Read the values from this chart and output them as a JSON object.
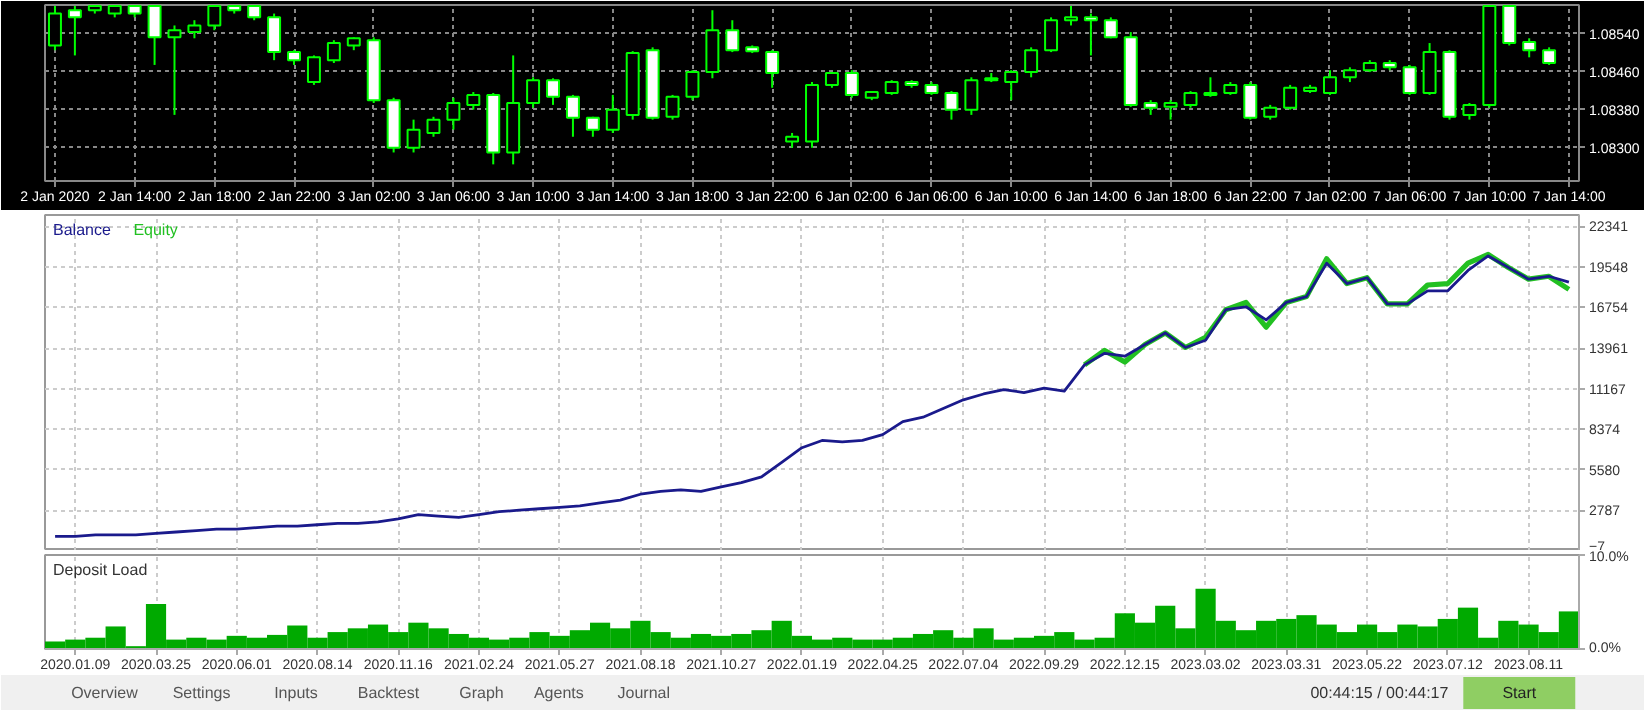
{
  "chart_data": [
    {
      "type": "candlestick",
      "grid": true,
      "categories": [
        "2 Jan 2020",
        null,
        null,
        null,
        "2 Jan 14:00",
        null,
        null,
        null,
        "2 Jan 18:00",
        null,
        null,
        null,
        "2 Jan 22:00",
        null,
        null,
        null,
        "3 Jan 02:00",
        null,
        null,
        null,
        "3 Jan 06:00",
        null,
        null,
        null,
        "3 Jan 10:00",
        null,
        null,
        null,
        "3 Jan 14:00",
        null,
        null,
        null,
        "3 Jan 18:00",
        null,
        null,
        null,
        "3 Jan 22:00",
        null,
        null,
        null,
        "6 Jan 02:00",
        null,
        null,
        null,
        "6 Jan 06:00",
        null,
        null,
        null,
        "6 Jan 10:00",
        null,
        null,
        null,
        "6 Jan 14:00",
        null,
        null,
        null,
        "6 Jan 18:00",
        null,
        null,
        null,
        "6 Jan 22:00",
        null,
        null,
        null,
        "7 Jan 02:00",
        null,
        null,
        null,
        "7 Jan 06:00",
        null,
        null,
        null,
        "7 Jan 10:00",
        null,
        null,
        null,
        "7 Jan 14:00"
      ],
      "ohlc": [
        [
          1.08515,
          1.08598,
          1.08505,
          1.08582
        ],
        [
          1.08589,
          1.08598,
          1.08494,
          1.08574
        ],
        [
          1.08589,
          1.08598,
          1.08582,
          1.08598
        ],
        [
          1.08582,
          1.08598,
          1.08574,
          1.08598
        ],
        [
          1.08598,
          1.08598,
          1.08574,
          1.08582
        ],
        [
          1.08598,
          1.08598,
          1.08474,
          1.08532
        ],
        [
          1.08532,
          1.08557,
          1.08369,
          1.08547
        ],
        [
          1.08543,
          1.08568,
          1.0853,
          1.08557
        ],
        [
          1.08557,
          1.08598,
          1.08547,
          1.08598
        ],
        [
          1.08598,
          1.08598,
          1.08582,
          1.08589
        ],
        [
          1.08598,
          1.08598,
          1.08568,
          1.08574
        ],
        [
          1.08574,
          1.08582,
          1.08484,
          1.08501
        ],
        [
          1.08501,
          1.08505,
          1.08474,
          1.08484
        ],
        [
          1.08438,
          1.08494,
          1.08432,
          1.0849
        ],
        [
          1.08484,
          1.08526,
          1.08478,
          1.0852
        ],
        [
          1.08515,
          1.08532,
          1.08505,
          1.0853
        ],
        [
          1.08526,
          1.08532,
          1.08394,
          1.084
        ],
        [
          1.084,
          1.08405,
          1.0829,
          1.083
        ],
        [
          1.083,
          1.08359,
          1.0829,
          1.08338
        ],
        [
          1.08331,
          1.08365,
          1.08323,
          1.08359
        ],
        [
          1.08359,
          1.08405,
          1.08338,
          1.08394
        ],
        [
          1.0839,
          1.08417,
          1.0838,
          1.08411
        ],
        [
          1.08411,
          1.08415,
          1.08265,
          1.0829
        ],
        [
          1.0829,
          1.08494,
          1.08265,
          1.08394
        ],
        [
          1.08394,
          1.08448,
          1.08384,
          1.08442
        ],
        [
          1.08442,
          1.08446,
          1.0839,
          1.08407
        ],
        [
          1.08407,
          1.08411,
          1.08323,
          1.08363
        ],
        [
          1.08363,
          1.08365,
          1.08323,
          1.08338
        ],
        [
          1.08338,
          1.08411,
          1.08331,
          1.0838
        ],
        [
          1.08369,
          1.08503,
          1.08359,
          1.08499
        ],
        [
          1.08505,
          1.08511,
          1.08359,
          1.08363
        ],
        [
          1.08365,
          1.08411,
          1.08359,
          1.08407
        ],
        [
          1.08407,
          1.08463,
          1.084,
          1.08459
        ],
        [
          1.08459,
          1.08589,
          1.08446,
          1.08547
        ],
        [
          1.08547,
          1.08568,
          1.08501,
          1.08505
        ],
        [
          1.08511,
          1.08515,
          1.08499,
          1.08503
        ],
        [
          1.08501,
          1.08505,
          1.08426,
          1.08457
        ],
        [
          1.08313,
          1.08331,
          1.083,
          1.08323
        ],
        [
          1.08313,
          1.08438,
          1.083,
          1.08432
        ],
        [
          1.08432,
          1.08459,
          1.08426,
          1.08457
        ],
        [
          1.08457,
          1.08463,
          1.08405,
          1.08411
        ],
        [
          1.08405,
          1.08419,
          1.084,
          1.08417
        ],
        [
          1.08415,
          1.08442,
          1.08411,
          1.08438
        ],
        [
          1.08438,
          1.08442,
          1.08426,
          1.08432
        ],
        [
          1.08432,
          1.08438,
          1.08411,
          1.08415
        ],
        [
          1.08415,
          1.08419,
          1.08359,
          1.0838
        ],
        [
          1.0838,
          1.08448,
          1.08369,
          1.08442
        ],
        [
          1.08442,
          1.08457,
          1.08438,
          1.08446
        ],
        [
          1.08438,
          1.08463,
          1.084,
          1.08459
        ],
        [
          1.08459,
          1.08511,
          1.08448,
          1.08505
        ],
        [
          1.08505,
          1.08574,
          1.08501,
          1.08568
        ],
        [
          1.08568,
          1.08598,
          1.08557,
          1.08574
        ],
        [
          1.08574,
          1.08582,
          1.08494,
          1.08568
        ],
        [
          1.08568,
          1.08574,
          1.0853,
          1.08532
        ],
        [
          1.08532,
          1.08543,
          1.08386,
          1.0839
        ],
        [
          1.08394,
          1.084,
          1.08369,
          1.08384
        ],
        [
          1.08386,
          1.084,
          1.08359,
          1.08394
        ],
        [
          1.0839,
          1.08419,
          1.08384,
          1.08415
        ],
        [
          1.08411,
          1.08448,
          1.08407,
          1.08415
        ],
        [
          1.08415,
          1.08438,
          1.08411,
          1.08432
        ],
        [
          1.08432,
          1.08438,
          1.08359,
          1.08363
        ],
        [
          1.08365,
          1.0839,
          1.08359,
          1.08384
        ],
        [
          1.08384,
          1.08432,
          1.0838,
          1.08426
        ],
        [
          1.08419,
          1.08432,
          1.08415,
          1.08426
        ],
        [
          1.08415,
          1.08463,
          1.08411,
          1.08448
        ],
        [
          1.08448,
          1.08469,
          1.08438,
          1.08463
        ],
        [
          1.08463,
          1.08484,
          1.08459,
          1.08478
        ],
        [
          1.08478,
          1.08484,
          1.08463,
          1.08469
        ],
        [
          1.08469,
          1.08474,
          1.08411,
          1.08415
        ],
        [
          1.08415,
          1.0852,
          1.08411,
          1.08501
        ],
        [
          1.08501,
          1.08505,
          1.08359,
          1.08365
        ],
        [
          1.08369,
          1.08394,
          1.08359,
          1.0839
        ],
        [
          1.0839,
          1.08598,
          1.08384,
          1.08598
        ],
        [
          1.08598,
          1.08598,
          1.08515,
          1.0852
        ],
        [
          1.08522,
          1.0853,
          1.0849,
          1.08505
        ],
        [
          1.08505,
          1.08511,
          1.08474,
          1.08478
        ],
        null
      ],
      "ylim": [
        1.0823,
        1.086
      ],
      "yticks": [
        {
          "value": 1.083,
          "label": "1.08300"
        },
        {
          "value": 1.0838,
          "label": "1.08380"
        },
        {
          "value": 1.0846,
          "label": "1.08460"
        },
        {
          "value": 1.0854,
          "label": "1.08540"
        }
      ]
    },
    {
      "type": "line",
      "grid": true,
      "legend": "top left",
      "tick_labels": "y",
      "categories": [
        null,
        "2020.01.09",
        null,
        null,
        null,
        "2020.03.25",
        null,
        null,
        null,
        "2020.06.01",
        null,
        null,
        null,
        "2020.08.14",
        null,
        null,
        null,
        "2020.11.16",
        null,
        null,
        null,
        "2021.02.24",
        null,
        null,
        null,
        "2021.05.27",
        null,
        null,
        null,
        "2021.08.18",
        null,
        null,
        null,
        "2021.10.27",
        null,
        null,
        null,
        "2022.01.19",
        null,
        null,
        null,
        "2022.04.25",
        null,
        null,
        null,
        "2022.07.04",
        null,
        null,
        null,
        "2022.09.29",
        null,
        null,
        null,
        "2022.12.15",
        null,
        null,
        null,
        "2023.03.02",
        null,
        null,
        null,
        "2023.03.31",
        null,
        null,
        null,
        "2023.05.22",
        null,
        null,
        null,
        "2023.07.12",
        null,
        null,
        null,
        "2023.08.11",
        null,
        null
      ],
      "series": [
        {
          "name": "Balance",
          "color": "#1a1a8c",
          "values": [
            1000,
            1000,
            1100,
            1100,
            1100,
            1200,
            1300,
            1400,
            1500,
            1500,
            1600,
            1700,
            1700,
            1800,
            1900,
            1900,
            2000,
            2200,
            2500,
            2400,
            2300,
            2500,
            2700,
            2800,
            2900,
            3000,
            3100,
            3300,
            3500,
            3900,
            4100,
            4200,
            4100,
            4400,
            4700,
            5100,
            6100,
            7100,
            7600,
            7500,
            7600,
            8000,
            8900,
            9200,
            9800,
            10400,
            10800,
            11100,
            10900,
            11200,
            11000,
            12800,
            13600,
            13400,
            14200,
            15000,
            14000,
            14500,
            16600,
            16800,
            15900,
            17100,
            17500,
            19800,
            18400,
            18800,
            17000,
            17000,
            17900,
            17900,
            19300,
            20300,
            19500,
            18700,
            18900,
            18500
          ]
        },
        {
          "name": "Equity",
          "color": "#22c022",
          "values": [
            null,
            null,
            null,
            null,
            null,
            null,
            null,
            null,
            null,
            null,
            null,
            null,
            null,
            null,
            null,
            null,
            null,
            null,
            null,
            null,
            null,
            null,
            null,
            null,
            null,
            null,
            null,
            null,
            null,
            null,
            null,
            null,
            null,
            null,
            null,
            null,
            null,
            null,
            null,
            null,
            null,
            null,
            null,
            null,
            null,
            null,
            null,
            null,
            null,
            null,
            null,
            12800,
            13800,
            13000,
            14200,
            15000,
            14000,
            14700,
            16600,
            17100,
            15400,
            17100,
            17500,
            20100,
            18400,
            18800,
            17000,
            17000,
            18300,
            18400,
            19800,
            20400,
            19500,
            18700,
            18900,
            18000
          ]
        }
      ],
      "ylim": [
        -7,
        23117
      ],
      "yticks": [
        -7,
        2787,
        5580,
        8374,
        11167,
        13961,
        16754,
        19548,
        22341
      ]
    },
    {
      "type": "bar",
      "title": "Deposit Load",
      "grid": true,
      "color": "#00aa00",
      "categories": [
        null,
        "2020.01.09",
        null,
        null,
        null,
        "2020.03.25",
        null,
        null,
        null,
        "2020.06.01",
        null,
        null,
        null,
        "2020.08.14",
        null,
        null,
        null,
        "2020.11.16",
        null,
        null,
        null,
        "2021.02.24",
        null,
        null,
        null,
        "2021.05.27",
        null,
        null,
        null,
        "2021.08.18",
        null,
        null,
        null,
        "2021.10.27",
        null,
        null,
        null,
        "2022.01.19",
        null,
        null,
        null,
        "2022.04.25",
        null,
        null,
        null,
        "2022.07.04",
        null,
        null,
        null,
        "2022.09.29",
        null,
        null,
        null,
        "2022.12.15",
        null,
        null,
        null,
        "2023.03.02",
        null,
        null,
        null,
        "2023.03.31",
        null,
        null,
        null,
        "2023.05.22",
        null,
        null,
        null,
        "2023.07.12",
        null,
        null,
        null,
        "2023.08.11",
        null,
        null
      ],
      "values": [
        0.8,
        1.0,
        1.2,
        2.4,
        0.3,
        4.8,
        1.0,
        1.2,
        1.0,
        1.4,
        1.2,
        1.5,
        2.5,
        1.2,
        1.8,
        2.2,
        2.6,
        1.8,
        2.8,
        2.2,
        1.6,
        1.2,
        1.0,
        1.2,
        1.8,
        1.4,
        2.0,
        2.8,
        2.2,
        3.0,
        1.8,
        1.2,
        1.6,
        1.4,
        1.6,
        2.0,
        3.0,
        1.4,
        1.0,
        1.2,
        1.0,
        1.0,
        1.2,
        1.6,
        2.0,
        1.2,
        2.2,
        1.0,
        1.2,
        1.4,
        1.8,
        1.0,
        1.2,
        3.8,
        2.8,
        4.6,
        2.2,
        6.4,
        3.0,
        2.0,
        3.0,
        3.2,
        3.6,
        2.6,
        1.8,
        2.6,
        1.8,
        2.6,
        2.4,
        3.2,
        4.4,
        1.2,
        3.0,
        2.6,
        1.8,
        4.0
      ],
      "ylim": [
        0,
        10
      ],
      "yticks": [
        {
          "value": 0,
          "label": "0.0%"
        },
        {
          "value": 10,
          "label": "10.0%"
        }
      ]
    },
    {
      "type": "other",
      "annotations": [
        "Overview",
        "Settings",
        "Inputs",
        "Backtest",
        "Graph",
        "Agents",
        "Journal",
        "00:44:15 / 00:44:17",
        "Start"
      ]
    }
  ]
}
